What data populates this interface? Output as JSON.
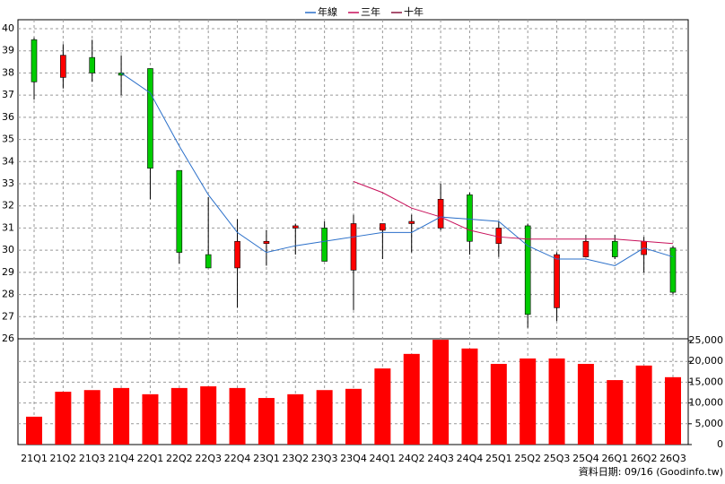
{
  "chart_data": {
    "type": "candlestick",
    "categories": [
      "21Q1",
      "21Q2",
      "21Q3",
      "21Q4",
      "22Q1",
      "22Q2",
      "22Q3",
      "22Q4",
      "23Q1",
      "23Q2",
      "23Q3",
      "23Q4",
      "24Q1",
      "24Q2",
      "24Q3",
      "24Q4",
      "25Q1",
      "25Q2",
      "25Q3",
      "25Q4",
      "26Q1",
      "26Q2",
      "26Q3"
    ],
    "open": [
      39.5,
      37.8,
      38.7,
      38.0,
      38.2,
      33.6,
      29.8,
      29.2,
      30.3,
      31.0,
      31.0,
      29.1,
      30.9,
      31.2,
      31.0,
      32.5,
      30.3,
      31.1,
      27.4,
      29.7,
      30.4,
      29.8,
      30.1
    ],
    "high": [
      39.6,
      39.3,
      39.5,
      38.8,
      38.2,
      33.6,
      32.4,
      31.4,
      30.9,
      31.2,
      31.3,
      31.6,
      31.2,
      31.6,
      33.0,
      32.6,
      31.3,
      31.2,
      29.9,
      30.7,
      30.7,
      30.6,
      30.2
    ],
    "low": [
      36.8,
      37.3,
      37.6,
      37.0,
      32.3,
      29.4,
      29.2,
      27.4,
      29.3,
      29.8,
      29.5,
      27.3,
      29.6,
      29.9,
      30.9,
      29.8,
      29.7,
      26.5,
      26.8,
      29.7,
      29.6,
      29.0,
      28.0
    ],
    "close": [
      37.6,
      38.8,
      38.0,
      37.9,
      33.7,
      29.9,
      29.2,
      30.4,
      30.4,
      31.1,
      29.5,
      31.2,
      31.2,
      31.3,
      32.3,
      30.4,
      31.0,
      27.1,
      29.8,
      30.4,
      29.7,
      30.4,
      28.1
    ],
    "up_color": "#ff0000",
    "down_color": "#00cc00",
    "series": [
      {
        "name": "年線",
        "color": "#2a6fc9",
        "values": [
          null,
          null,
          null,
          38.0,
          37.1,
          34.7,
          32.5,
          30.8,
          29.9,
          30.2,
          30.4,
          30.6,
          30.8,
          30.8,
          31.5,
          31.4,
          31.3,
          30.2,
          29.6,
          29.6,
          29.3,
          30.1,
          29.7
        ]
      },
      {
        "name": "三年",
        "color": "#c8105a",
        "values": [
          null,
          null,
          null,
          null,
          null,
          null,
          null,
          null,
          null,
          null,
          null,
          33.1,
          32.6,
          31.9,
          31.5,
          30.9,
          30.6,
          30.5,
          30.5,
          30.5,
          30.5,
          30.4,
          30.3
        ]
      },
      {
        "name": "十年",
        "color": "#8b1840",
        "values": [
          null,
          null,
          null,
          null,
          null,
          null,
          null,
          null,
          null,
          null,
          null,
          null,
          null,
          null,
          null,
          null,
          null,
          null,
          null,
          null,
          null,
          null,
          null
        ]
      }
    ],
    "volume": {
      "color": "#ff0000",
      "values": [
        6700,
        12700,
        13100,
        13600,
        12100,
        13600,
        14000,
        13600,
        11200,
        12100,
        13100,
        13400,
        18300,
        21800,
        25200,
        23100,
        19400,
        20700,
        20700,
        19400,
        15500,
        19000,
        16200
      ],
      "ylim": [
        0,
        25000
      ],
      "yticks": [
        {
          "value": 0,
          "label": "0"
        },
        {
          "value": 5000,
          "label": "5,000"
        },
        {
          "value": 10000,
          "label": "10,000"
        },
        {
          "value": 15000,
          "label": "15,000"
        },
        {
          "value": 20000,
          "label": "20,000"
        },
        {
          "value": 25000,
          "label": "25,000"
        }
      ]
    },
    "ylim": [
      26,
      40
    ],
    "yticks": [
      26,
      27,
      28,
      29,
      30,
      31,
      32,
      33,
      34,
      35,
      36,
      37,
      38,
      39,
      40
    ],
    "grid": true,
    "footer": "資料日期: 09/16  (Goodinfo.tw)"
  }
}
